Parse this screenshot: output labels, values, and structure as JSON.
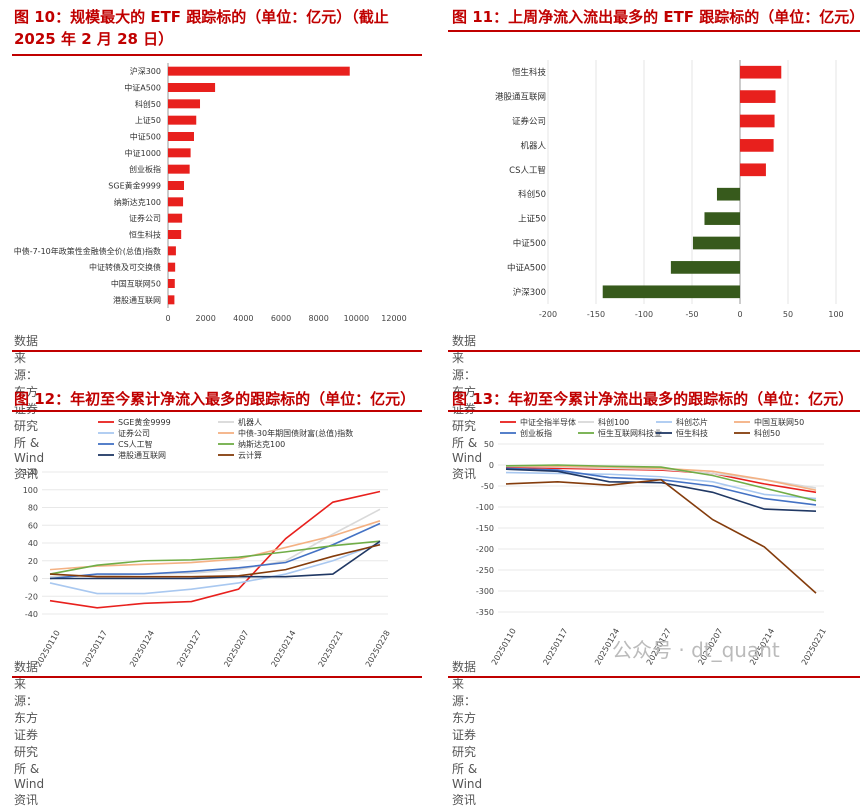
{
  "source_text": "数据来源：东方证券研究所 & Wind 资讯",
  "watermark": "公众号 · dt_quant",
  "colors": {
    "title_red": "#c00000",
    "bar_red": "#e8201d",
    "bar_green": "#375a1c"
  },
  "panels": [
    {
      "title": "图 10：规模最大的 ETF 跟踪标的（单位：亿元）（截止 2025 年 2 月 28 日）"
    },
    {
      "title": "图 11：上周净流入流出最多的 ETF 跟踪标的（单位：亿元）"
    },
    {
      "title": "图 12：年初至今累计净流入最多的跟踪标的（单位：亿元）"
    },
    {
      "title": "图 13：年初至今累计净流出最多的跟踪标的（单位：亿元）"
    }
  ],
  "chart_data": [
    {
      "type": "bar",
      "orientation": "horizontal",
      "categories": [
        "沪深300",
        "中证A500",
        "科创50",
        "上证50",
        "中证500",
        "中证1000",
        "创业板指",
        "SGE黄金9999",
        "纳斯达克100",
        "证券公司",
        "恒生科技",
        "中债-7-10年政策性金融债全价(总值)指数",
        "中证转债及可交换债",
        "中国互联网50",
        "港股通互联网"
      ],
      "values": [
        9650,
        2500,
        1700,
        1500,
        1380,
        1200,
        1150,
        850,
        800,
        750,
        700,
        420,
        380,
        360,
        340
      ],
      "xlim": [
        0,
        12000
      ],
      "xticks": [
        0,
        2000,
        4000,
        6000,
        8000,
        10000,
        12000
      ]
    },
    {
      "type": "bar",
      "orientation": "horizontal",
      "categories": [
        "恒生科技",
        "港股通互联网",
        "证券公司",
        "机器人",
        "CS人工智",
        "科创50",
        "上证50",
        "中证500",
        "中证A500",
        "沪深300"
      ],
      "values": [
        43,
        37,
        36,
        35,
        27,
        -24,
        -37,
        -49,
        -72,
        -143
      ],
      "xlim": [
        -200,
        100
      ],
      "xticks": [
        -200,
        -150,
        -100,
        -50,
        0,
        50,
        100
      ]
    },
    {
      "type": "line",
      "x": [
        "20250110",
        "20250117",
        "20250124",
        "20250127",
        "20250207",
        "20250214",
        "20250221",
        "20250228"
      ],
      "ylim": [
        -40,
        120
      ],
      "yticks": [
        -40,
        -20,
        0,
        20,
        40,
        60,
        80,
        100,
        120
      ],
      "series": [
        {
          "name": "SGE黄金9999",
          "color": "#e8201d",
          "values": [
            -25,
            -33,
            -28,
            -26,
            -12,
            45,
            86,
            98
          ]
        },
        {
          "name": "机器人",
          "color": "#d9d9d9",
          "values": [
            2,
            3,
            5,
            6,
            10,
            20,
            50,
            78
          ]
        },
        {
          "name": "证券公司",
          "color": "#a9c8f0",
          "values": [
            -5,
            -17,
            -17,
            -12,
            -5,
            5,
            20,
            40
          ]
        },
        {
          "name": "中债-30年期国债财富(总值)指数",
          "color": "#f4b183",
          "values": [
            10,
            14,
            16,
            18,
            22,
            35,
            48,
            65
          ]
        },
        {
          "name": "CS人工智",
          "color": "#4472c4",
          "values": [
            0,
            5,
            5,
            8,
            12,
            18,
            38,
            62
          ]
        },
        {
          "name": "纳斯达克100",
          "color": "#70ad47",
          "values": [
            5,
            15,
            20,
            21,
            24,
            30,
            37,
            42
          ]
        },
        {
          "name": "港股通互联网",
          "color": "#203864",
          "values": [
            0,
            0,
            0,
            0,
            2,
            2,
            5,
            42
          ]
        },
        {
          "name": "云计算",
          "color": "#843c0c",
          "values": [
            5,
            2,
            2,
            2,
            3,
            10,
            25,
            38
          ]
        }
      ]
    },
    {
      "type": "line",
      "x": [
        "20250110",
        "20250117",
        "20250124",
        "20250127",
        "20250207",
        "20250214",
        "20250221"
      ],
      "ylim": [
        -350,
        50
      ],
      "yticks": [
        -350,
        -300,
        -250,
        -200,
        -150,
        -100,
        -50,
        0,
        50
      ],
      "series": [
        {
          "name": "中证全指半导体",
          "color": "#e8201d",
          "values": [
            -5,
            -8,
            -10,
            -12,
            -20,
            -45,
            -65
          ]
        },
        {
          "name": "科创100",
          "color": "#d9d9d9",
          "values": [
            -3,
            -5,
            -8,
            -10,
            -20,
            -35,
            -55
          ]
        },
        {
          "name": "科创芯片",
          "color": "#a9c8f0",
          "values": [
            -18,
            -20,
            -22,
            -28,
            -40,
            -70,
            -80
          ]
        },
        {
          "name": "中国互联网50",
          "color": "#f4b183",
          "values": [
            -2,
            -3,
            -5,
            -8,
            -15,
            -35,
            -60
          ]
        },
        {
          "name": "创业板指",
          "color": "#4472c4",
          "values": [
            -8,
            -12,
            -30,
            -35,
            -50,
            -80,
            -95
          ]
        },
        {
          "name": "恒生互联网科技业",
          "color": "#70ad47",
          "values": [
            -2,
            0,
            -3,
            -5,
            -25,
            -55,
            -85
          ]
        },
        {
          "name": "恒生科技",
          "color": "#203864",
          "values": [
            -10,
            -15,
            -40,
            -42,
            -65,
            -105,
            -110
          ]
        },
        {
          "name": "科创50",
          "color": "#843c0c",
          "values": [
            -45,
            -40,
            -48,
            -35,
            -130,
            -195,
            -305
          ]
        }
      ]
    }
  ]
}
